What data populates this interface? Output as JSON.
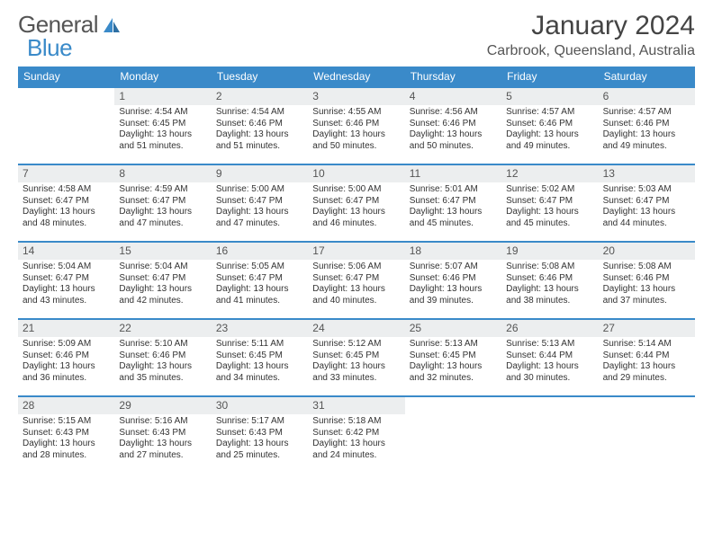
{
  "logo": {
    "text_a": "General",
    "text_b": "Blue"
  },
  "title": "January 2024",
  "location": "Carbrook, Queensland, Australia",
  "colors": {
    "header_blue": "#3a8ac9",
    "daynum_bg": "#eceeef",
    "text": "#333333",
    "logo_gray": "#555555"
  },
  "weekdays": [
    "Sunday",
    "Monday",
    "Tuesday",
    "Wednesday",
    "Thursday",
    "Friday",
    "Saturday"
  ],
  "first_weekday_index": 1,
  "days": [
    {
      "n": "1",
      "sr": "Sunrise: 4:54 AM",
      "ss": "Sunset: 6:45 PM",
      "dl1": "Daylight: 13 hours",
      "dl2": "and 51 minutes."
    },
    {
      "n": "2",
      "sr": "Sunrise: 4:54 AM",
      "ss": "Sunset: 6:46 PM",
      "dl1": "Daylight: 13 hours",
      "dl2": "and 51 minutes."
    },
    {
      "n": "3",
      "sr": "Sunrise: 4:55 AM",
      "ss": "Sunset: 6:46 PM",
      "dl1": "Daylight: 13 hours",
      "dl2": "and 50 minutes."
    },
    {
      "n": "4",
      "sr": "Sunrise: 4:56 AM",
      "ss": "Sunset: 6:46 PM",
      "dl1": "Daylight: 13 hours",
      "dl2": "and 50 minutes."
    },
    {
      "n": "5",
      "sr": "Sunrise: 4:57 AM",
      "ss": "Sunset: 6:46 PM",
      "dl1": "Daylight: 13 hours",
      "dl2": "and 49 minutes."
    },
    {
      "n": "6",
      "sr": "Sunrise: 4:57 AM",
      "ss": "Sunset: 6:46 PM",
      "dl1": "Daylight: 13 hours",
      "dl2": "and 49 minutes."
    },
    {
      "n": "7",
      "sr": "Sunrise: 4:58 AM",
      "ss": "Sunset: 6:47 PM",
      "dl1": "Daylight: 13 hours",
      "dl2": "and 48 minutes."
    },
    {
      "n": "8",
      "sr": "Sunrise: 4:59 AM",
      "ss": "Sunset: 6:47 PM",
      "dl1": "Daylight: 13 hours",
      "dl2": "and 47 minutes."
    },
    {
      "n": "9",
      "sr": "Sunrise: 5:00 AM",
      "ss": "Sunset: 6:47 PM",
      "dl1": "Daylight: 13 hours",
      "dl2": "and 47 minutes."
    },
    {
      "n": "10",
      "sr": "Sunrise: 5:00 AM",
      "ss": "Sunset: 6:47 PM",
      "dl1": "Daylight: 13 hours",
      "dl2": "and 46 minutes."
    },
    {
      "n": "11",
      "sr": "Sunrise: 5:01 AM",
      "ss": "Sunset: 6:47 PM",
      "dl1": "Daylight: 13 hours",
      "dl2": "and 45 minutes."
    },
    {
      "n": "12",
      "sr": "Sunrise: 5:02 AM",
      "ss": "Sunset: 6:47 PM",
      "dl1": "Daylight: 13 hours",
      "dl2": "and 45 minutes."
    },
    {
      "n": "13",
      "sr": "Sunrise: 5:03 AM",
      "ss": "Sunset: 6:47 PM",
      "dl1": "Daylight: 13 hours",
      "dl2": "and 44 minutes."
    },
    {
      "n": "14",
      "sr": "Sunrise: 5:04 AM",
      "ss": "Sunset: 6:47 PM",
      "dl1": "Daylight: 13 hours",
      "dl2": "and 43 minutes."
    },
    {
      "n": "15",
      "sr": "Sunrise: 5:04 AM",
      "ss": "Sunset: 6:47 PM",
      "dl1": "Daylight: 13 hours",
      "dl2": "and 42 minutes."
    },
    {
      "n": "16",
      "sr": "Sunrise: 5:05 AM",
      "ss": "Sunset: 6:47 PM",
      "dl1": "Daylight: 13 hours",
      "dl2": "and 41 minutes."
    },
    {
      "n": "17",
      "sr": "Sunrise: 5:06 AM",
      "ss": "Sunset: 6:47 PM",
      "dl1": "Daylight: 13 hours",
      "dl2": "and 40 minutes."
    },
    {
      "n": "18",
      "sr": "Sunrise: 5:07 AM",
      "ss": "Sunset: 6:46 PM",
      "dl1": "Daylight: 13 hours",
      "dl2": "and 39 minutes."
    },
    {
      "n": "19",
      "sr": "Sunrise: 5:08 AM",
      "ss": "Sunset: 6:46 PM",
      "dl1": "Daylight: 13 hours",
      "dl2": "and 38 minutes."
    },
    {
      "n": "20",
      "sr": "Sunrise: 5:08 AM",
      "ss": "Sunset: 6:46 PM",
      "dl1": "Daylight: 13 hours",
      "dl2": "and 37 minutes."
    },
    {
      "n": "21",
      "sr": "Sunrise: 5:09 AM",
      "ss": "Sunset: 6:46 PM",
      "dl1": "Daylight: 13 hours",
      "dl2": "and 36 minutes."
    },
    {
      "n": "22",
      "sr": "Sunrise: 5:10 AM",
      "ss": "Sunset: 6:46 PM",
      "dl1": "Daylight: 13 hours",
      "dl2": "and 35 minutes."
    },
    {
      "n": "23",
      "sr": "Sunrise: 5:11 AM",
      "ss": "Sunset: 6:45 PM",
      "dl1": "Daylight: 13 hours",
      "dl2": "and 34 minutes."
    },
    {
      "n": "24",
      "sr": "Sunrise: 5:12 AM",
      "ss": "Sunset: 6:45 PM",
      "dl1": "Daylight: 13 hours",
      "dl2": "and 33 minutes."
    },
    {
      "n": "25",
      "sr": "Sunrise: 5:13 AM",
      "ss": "Sunset: 6:45 PM",
      "dl1": "Daylight: 13 hours",
      "dl2": "and 32 minutes."
    },
    {
      "n": "26",
      "sr": "Sunrise: 5:13 AM",
      "ss": "Sunset: 6:44 PM",
      "dl1": "Daylight: 13 hours",
      "dl2": "and 30 minutes."
    },
    {
      "n": "27",
      "sr": "Sunrise: 5:14 AM",
      "ss": "Sunset: 6:44 PM",
      "dl1": "Daylight: 13 hours",
      "dl2": "and 29 minutes."
    },
    {
      "n": "28",
      "sr": "Sunrise: 5:15 AM",
      "ss": "Sunset: 6:43 PM",
      "dl1": "Daylight: 13 hours",
      "dl2": "and 28 minutes."
    },
    {
      "n": "29",
      "sr": "Sunrise: 5:16 AM",
      "ss": "Sunset: 6:43 PM",
      "dl1": "Daylight: 13 hours",
      "dl2": "and 27 minutes."
    },
    {
      "n": "30",
      "sr": "Sunrise: 5:17 AM",
      "ss": "Sunset: 6:43 PM",
      "dl1": "Daylight: 13 hours",
      "dl2": "and 25 minutes."
    },
    {
      "n": "31",
      "sr": "Sunrise: 5:18 AM",
      "ss": "Sunset: 6:42 PM",
      "dl1": "Daylight: 13 hours",
      "dl2": "and 24 minutes."
    }
  ]
}
